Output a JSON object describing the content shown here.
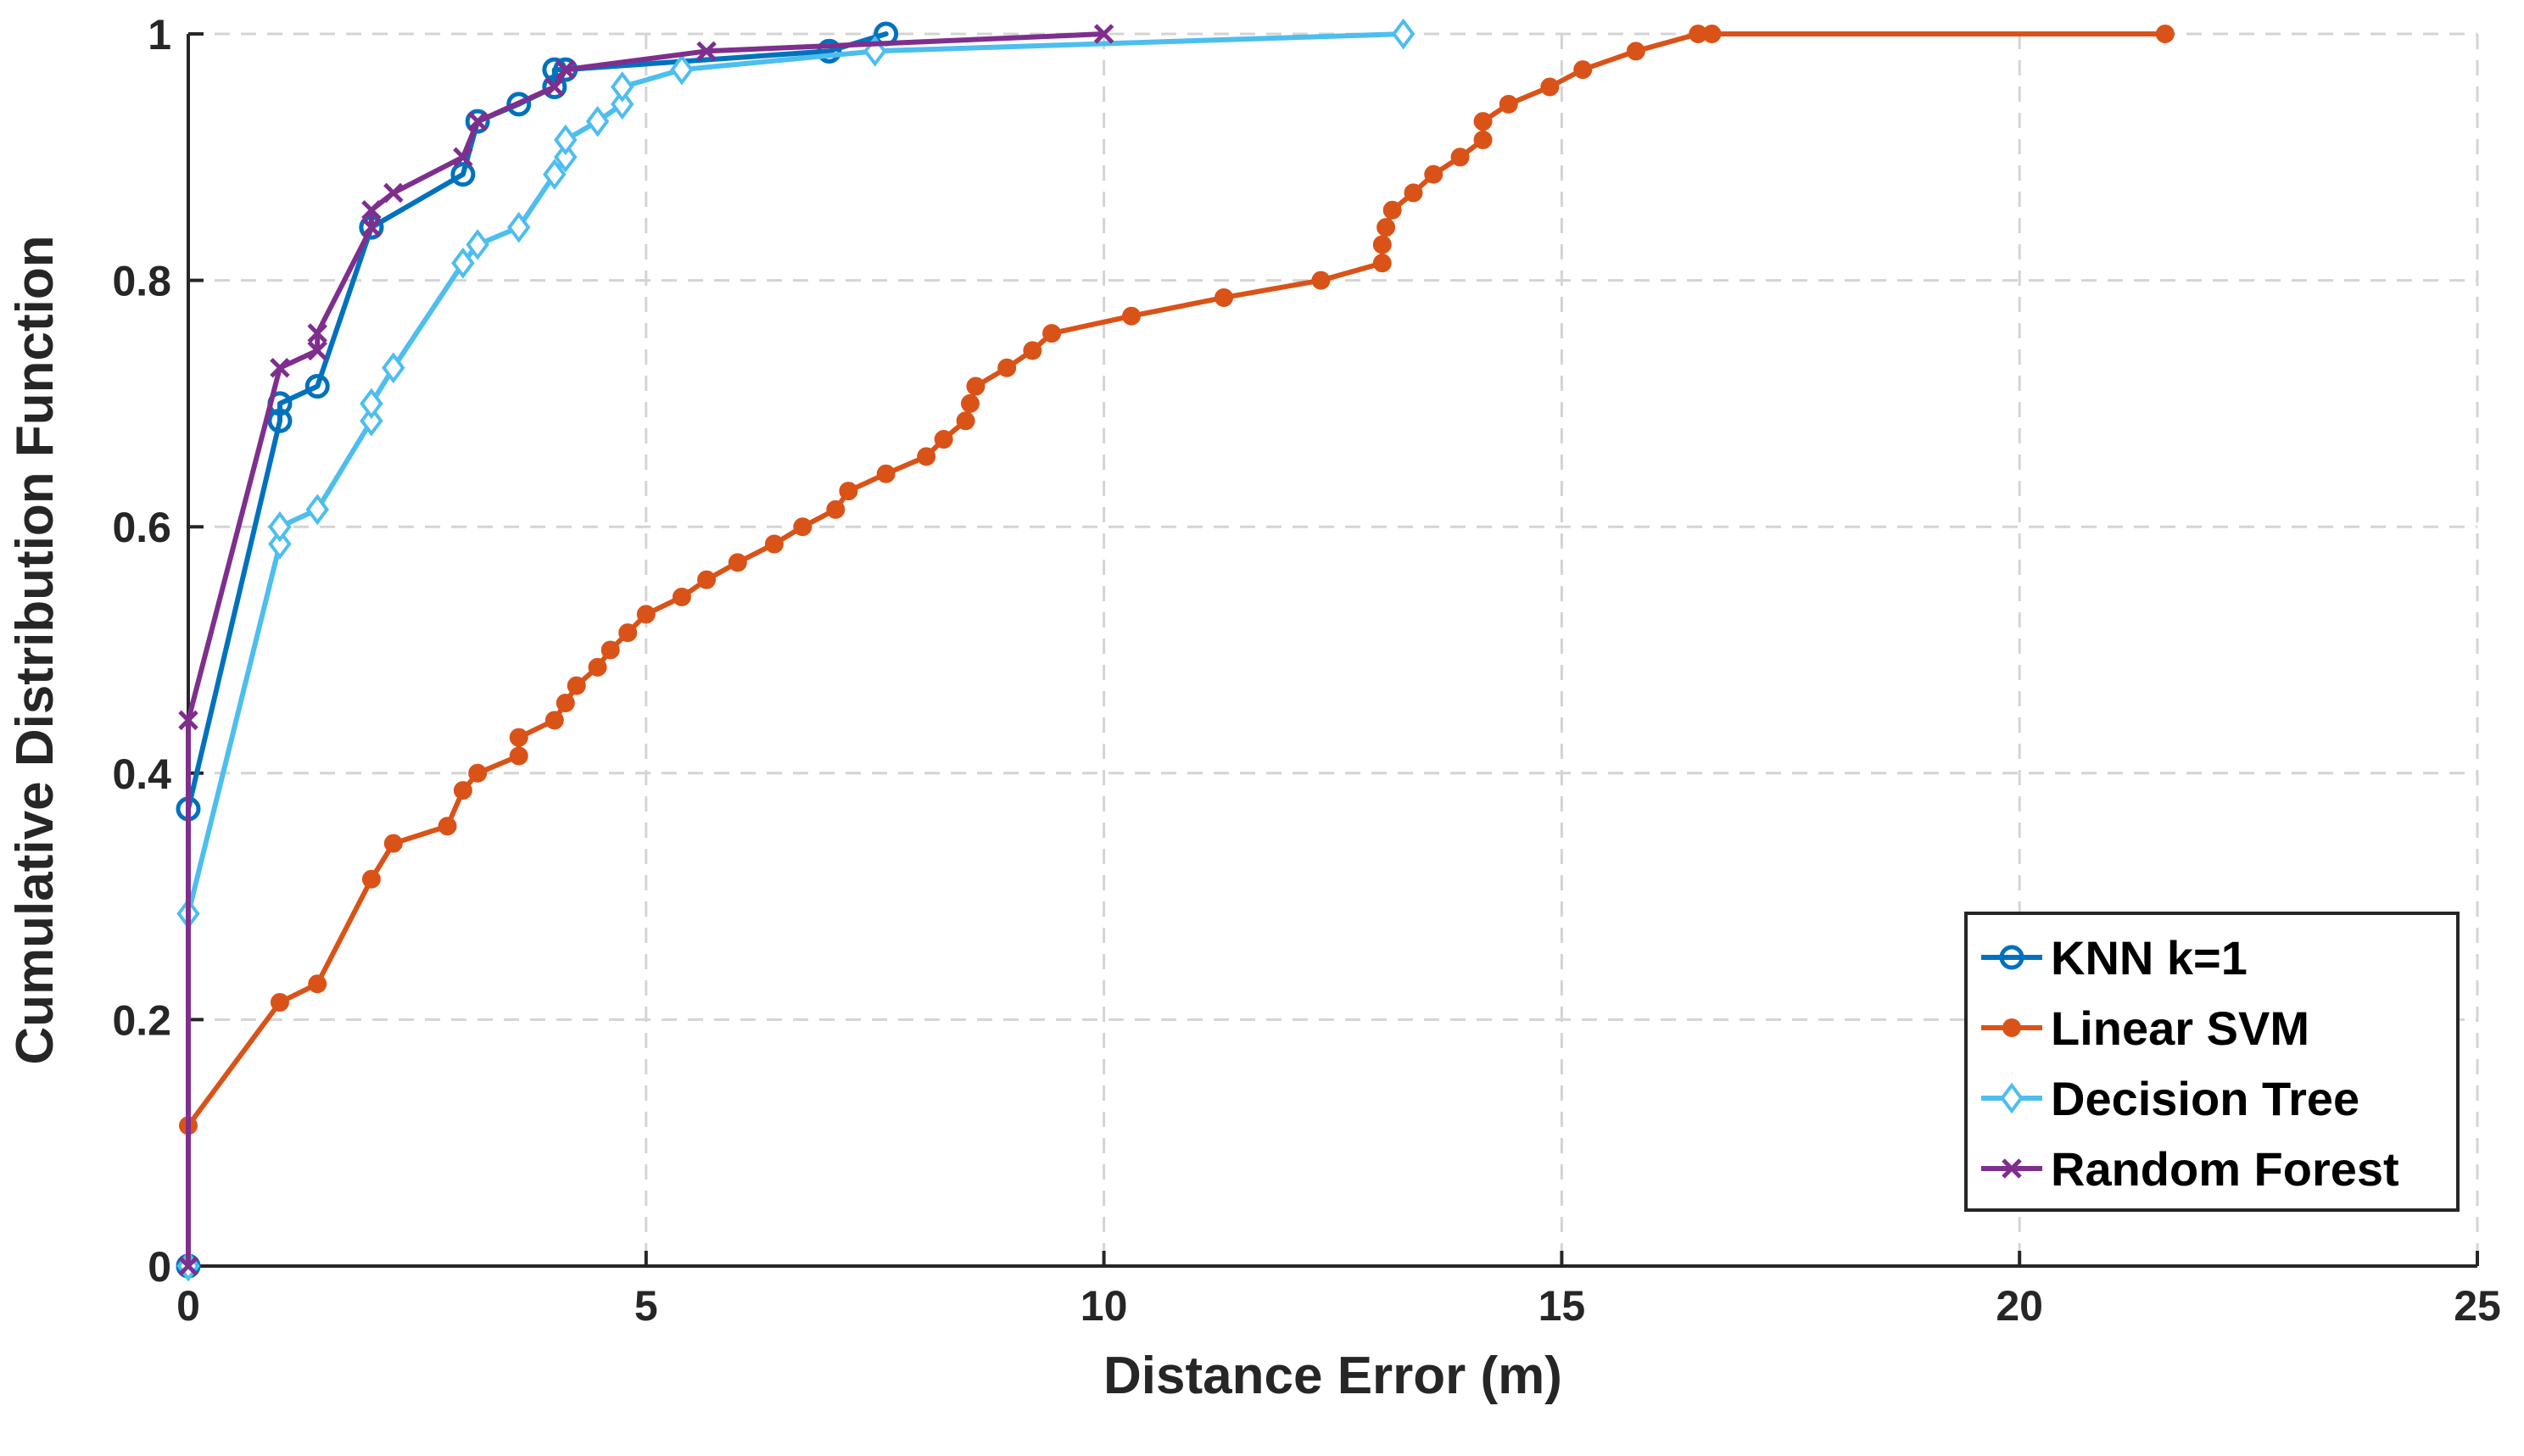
{
  "chart_data": {
    "type": "line",
    "title": "",
    "xlabel": "Distance Error (m)",
    "ylabel": "Cumulative Distribution Function",
    "xlim": [
      0,
      25
    ],
    "ylim": [
      0,
      1
    ],
    "xticks": [
      0,
      5,
      10,
      15,
      20,
      25
    ],
    "yticks": [
      0,
      0.2,
      0.4,
      0.6,
      0.8,
      1
    ],
    "xtick_labels": [
      "0",
      "5",
      "10",
      "15",
      "20",
      "25"
    ],
    "ytick_labels": [
      "0",
      "0.2",
      "0.4",
      "0.6",
      "0.8",
      "1"
    ],
    "grid": true,
    "legend_position": "bottom-right",
    "series": [
      {
        "name": "KNN k=1",
        "color": "#0072BD",
        "marker": "circle",
        "x": [
          0,
          0,
          1,
          1,
          1.41,
          2,
          2,
          3,
          3.16,
          3.61,
          4,
          4,
          4.12,
          7,
          7,
          7.62
        ],
        "y": [
          0,
          0.371,
          0.686,
          0.7,
          0.714,
          0.843,
          0.843,
          0.886,
          0.929,
          0.943,
          0.957,
          0.971,
          0.971,
          0.986,
          0.986,
          1.0
        ]
      },
      {
        "name": "Linear SVM",
        "color": "#D95319",
        "marker": "dot",
        "x": [
          0,
          1,
          1.41,
          2,
          2.24,
          2.83,
          3,
          3.16,
          3.61,
          3.61,
          4,
          4.12,
          4.24,
          4.47,
          4.61,
          4.8,
          5,
          5.39,
          5.66,
          6,
          6.4,
          6.71,
          7.07,
          7.21,
          7.62,
          8.06,
          8.25,
          8.49,
          8.54,
          8.6,
          8.94,
          9.22,
          9.43,
          10.3,
          11.31,
          12.37,
          13.04,
          13.04,
          13.08,
          13.15,
          13.38,
          13.6,
          13.89,
          14.14,
          14.14,
          14.42,
          14.87,
          15.23,
          15.81,
          16.49,
          16.64,
          21.59
        ],
        "y": [
          0.114,
          0.214,
          0.229,
          0.314,
          0.343,
          0.357,
          0.386,
          0.4,
          0.414,
          0.429,
          0.443,
          0.457,
          0.471,
          0.486,
          0.5,
          0.514,
          0.529,
          0.543,
          0.557,
          0.571,
          0.586,
          0.6,
          0.614,
          0.629,
          0.643,
          0.657,
          0.671,
          0.686,
          0.7,
          0.714,
          0.729,
          0.743,
          0.757,
          0.771,
          0.786,
          0.8,
          0.814,
          0.829,
          0.843,
          0.857,
          0.871,
          0.886,
          0.9,
          0.914,
          0.929,
          0.943,
          0.957,
          0.971,
          0.986,
          1.0,
          1.0,
          1.0
        ]
      },
      {
        "name": "Decision Tree",
        "color": "#4DBEEE",
        "marker": "diamond",
        "x": [
          0,
          0,
          1,
          1,
          1.41,
          2,
          2,
          2.24,
          3,
          3.16,
          3.61,
          4,
          4.12,
          4.12,
          4.47,
          4.74,
          4.74,
          5.39,
          7.5,
          13.27
        ],
        "y": [
          0,
          0.286,
          0.586,
          0.6,
          0.614,
          0.686,
          0.7,
          0.729,
          0.814,
          0.829,
          0.843,
          0.886,
          0.9,
          0.914,
          0.929,
          0.943,
          0.957,
          0.971,
          0.986,
          1.0
        ]
      },
      {
        "name": "Random Forest",
        "color": "#7E2F8E",
        "marker": "x",
        "x": [
          0,
          0,
          1,
          1.41,
          1.41,
          2,
          2,
          2.24,
          3,
          3.16,
          4,
          4.12,
          5.66,
          10
        ],
        "y": [
          0,
          0.443,
          0.729,
          0.743,
          0.757,
          0.843,
          0.857,
          0.871,
          0.9,
          0.929,
          0.957,
          0.971,
          0.986,
          1.0
        ]
      }
    ]
  }
}
